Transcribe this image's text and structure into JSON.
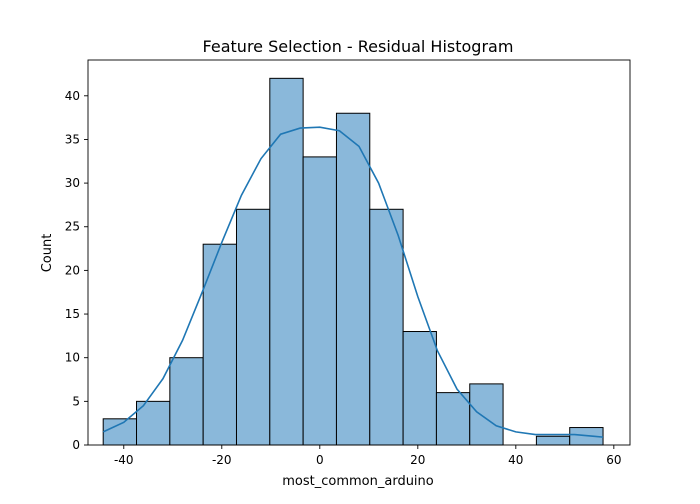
{
  "chart_data": {
    "type": "bar",
    "title": "Feature Selection - Residual Histogram",
    "xlabel": "most_common_arduino",
    "ylabel": "Count",
    "xlim": [
      -47.3,
      63.3
    ],
    "ylim": [
      0,
      44.1
    ],
    "xticks": [
      -40,
      -20,
      0,
      20,
      40,
      60
    ],
    "yticks": [
      0,
      5,
      10,
      15,
      20,
      25,
      30,
      35,
      40
    ],
    "grid": false,
    "bar_color": "#8ab8da",
    "bar_edge_color": "#000000",
    "line_color": "#1f77b4",
    "bins": [
      {
        "x0": -44.2,
        "x1": -37.4,
        "count": 3
      },
      {
        "x0": -37.4,
        "x1": -30.6,
        "count": 5
      },
      {
        "x0": -30.6,
        "x1": -23.8,
        "count": 10
      },
      {
        "x0": -23.8,
        "x1": -17.0,
        "count": 23
      },
      {
        "x0": -17.0,
        "x1": -10.2,
        "count": 27
      },
      {
        "x0": -10.2,
        "x1": -3.4,
        "count": 42
      },
      {
        "x0": -3.4,
        "x1": 3.4,
        "count": 33
      },
      {
        "x0": 3.4,
        "x1": 10.2,
        "count": 38
      },
      {
        "x0": 10.2,
        "x1": 17.0,
        "count": 27
      },
      {
        "x0": 17.0,
        "x1": 23.8,
        "count": 13
      },
      {
        "x0": 23.8,
        "x1": 30.6,
        "count": 6
      },
      {
        "x0": 30.6,
        "x1": 37.4,
        "count": 7
      },
      {
        "x0": 37.4,
        "x1": 44.2,
        "count": 0
      },
      {
        "x0": 44.2,
        "x1": 51.0,
        "count": 1
      },
      {
        "x0": 51.0,
        "x1": 57.8,
        "count": 2
      }
    ],
    "kde": {
      "x": [
        -44.2,
        -40,
        -36,
        -32,
        -28,
        -24,
        -20,
        -16,
        -12,
        -8,
        -4,
        0,
        4,
        8,
        12,
        16,
        20,
        24,
        28,
        32,
        36,
        40,
        44,
        48,
        52,
        56,
        57.8
      ],
      "y": [
        1.5,
        2.6,
        4.5,
        7.6,
        12.0,
        17.5,
        23.2,
        28.6,
        32.8,
        35.6,
        36.3,
        36.4,
        36.0,
        34.2,
        30.0,
        24.0,
        17.0,
        10.8,
        6.4,
        3.8,
        2.2,
        1.5,
        1.2,
        1.2,
        1.2,
        1.0,
        0.9
      ]
    }
  }
}
